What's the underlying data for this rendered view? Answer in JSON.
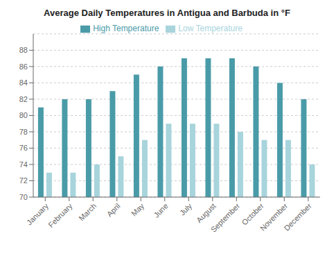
{
  "chart_data": {
    "type": "bar",
    "title": "Average Daily Temperatures in Antigua and Barbuda in °F",
    "categories": [
      "January",
      "February",
      "March",
      "April",
      "May",
      "June",
      "July",
      "August",
      "September",
      "October",
      "November",
      "December"
    ],
    "series": [
      {
        "name": "High Temperature",
        "color": "#4A9BA8",
        "values": [
          81,
          82,
          82,
          83,
          85,
          86,
          87,
          87,
          87,
          86,
          84,
          82
        ]
      },
      {
        "name": "Low Temperature",
        "color": "#A8D4DC",
        "values": [
          73,
          73,
          74,
          75,
          77,
          79,
          79,
          79,
          78,
          77,
          77,
          74
        ]
      }
    ],
    "ylim": [
      70,
      90
    ],
    "yticks": [
      70,
      72,
      74,
      76,
      78,
      80,
      82,
      84,
      86,
      88
    ],
    "grid": true,
    "legend": "top"
  }
}
